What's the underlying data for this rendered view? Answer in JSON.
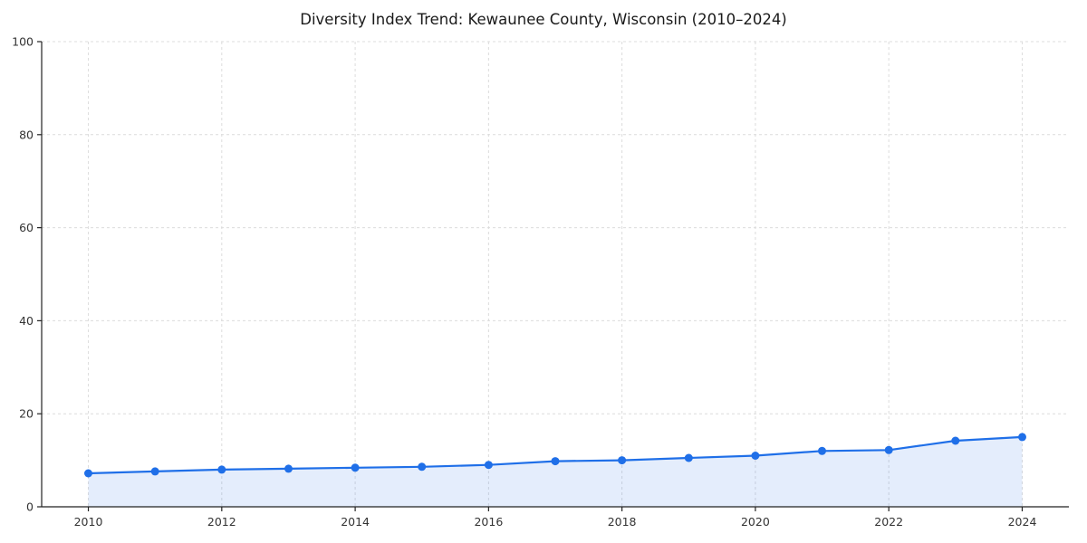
{
  "chart_data": {
    "type": "area",
    "title": "Diversity Index Trend: Kewaunee County, Wisconsin (2010–2024)",
    "xlabel": "",
    "ylabel": "",
    "x": [
      2010,
      2011,
      2012,
      2013,
      2014,
      2015,
      2016,
      2017,
      2018,
      2019,
      2020,
      2021,
      2022,
      2023,
      2024
    ],
    "values": [
      7.2,
      7.6,
      8.0,
      8.2,
      8.4,
      8.6,
      9.0,
      9.8,
      10.0,
      10.5,
      11.0,
      12.0,
      12.2,
      14.2,
      15.0
    ],
    "xlim": [
      2009.3,
      2024.7
    ],
    "ylim": [
      0,
      100
    ],
    "x_ticks": [
      2010,
      2012,
      2014,
      2016,
      2018,
      2020,
      2022,
      2024
    ],
    "y_ticks": [
      0,
      20,
      40,
      60,
      80,
      100
    ],
    "grid": "dashed",
    "legend": "none",
    "line_color": "#1f6fe8",
    "fill_color": "rgba(31, 111, 232, 0.12)",
    "marker_color": "#1f6fe8",
    "axis_color": "#222222",
    "grid_color": "#dcdcdc",
    "tick_label_color": "#333333"
  }
}
